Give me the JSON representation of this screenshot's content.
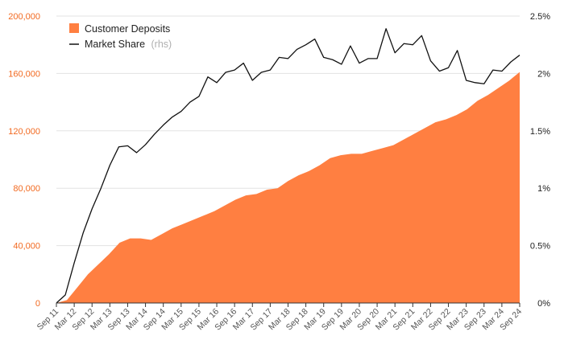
{
  "chart_data": {
    "type": "area+line",
    "title": "",
    "colors": {
      "deposits": "#ff7f41",
      "share": "#111111",
      "left_axis_text": "#f26a21",
      "grid": "#e3e3e3"
    },
    "legend": {
      "placement": "top-left",
      "deposits_label": "Customer Deposits",
      "share_label": "Market Share",
      "share_suffix": "(rhs)"
    },
    "left_axis": {
      "min": 0,
      "max": 200000,
      "ticks": [
        0,
        40000,
        80000,
        120000,
        160000,
        200000
      ],
      "tick_labels": [
        "0",
        "40,000",
        "80,000",
        "120,000",
        "160,000",
        "200,000"
      ]
    },
    "right_axis": {
      "min": 0,
      "max": 2.5,
      "ticks": [
        0,
        0.5,
        1,
        1.5,
        2,
        2.5
      ],
      "tick_labels": [
        "0%",
        "0.5%",
        "1%",
        "1.5%",
        "2%",
        "2.5%"
      ]
    },
    "x_tick_labels": [
      "Sep 11",
      "Mar 12",
      "Sep 12",
      "Mar 13",
      "Sep 13",
      "Mar 14",
      "Sep 14",
      "Mar 15",
      "Sep 15",
      "Mar 16",
      "Sep 16",
      "Mar 17",
      "Sep 17",
      "Mar 18",
      "Sep 18",
      "Mar 19",
      "Sep 19",
      "Mar 20",
      "Sep 20",
      "Mar 21",
      "Sep 21",
      "Mar 22",
      "Sep 22",
      "Mar 23",
      "Sep 23",
      "Mar 24",
      "Sep 24"
    ],
    "series": [
      {
        "name": "Customer Deposits",
        "axis": "left",
        "kind": "area",
        "values": [
          0,
          2000,
          11000,
          20000,
          27000,
          34000,
          42000,
          45000,
          45000,
          44000,
          48000,
          52000,
          55000,
          58000,
          61000,
          64000,
          68000,
          72000,
          75000,
          76000,
          79000,
          80000,
          85000,
          89000,
          92000,
          96000,
          101000,
          103000,
          104000,
          104000,
          106000,
          108000,
          110000,
          114000,
          118000,
          122000,
          126000,
          128000,
          131000,
          135000,
          141000,
          145000,
          150000,
          155000,
          161000
        ]
      },
      {
        "name": "Market Share",
        "axis": "right",
        "kind": "line",
        "values": [
          0,
          0.07,
          0.35,
          0.61,
          0.82,
          1.0,
          1.2,
          1.36,
          1.37,
          1.31,
          1.38,
          1.47,
          1.55,
          1.62,
          1.67,
          1.75,
          1.8,
          1.97,
          1.92,
          2.01,
          2.03,
          2.09,
          1.94,
          2.01,
          2.03,
          2.14,
          2.13,
          2.21,
          2.25,
          2.3,
          2.14,
          2.12,
          2.08,
          2.24,
          2.09,
          2.13,
          2.13,
          2.39,
          2.18,
          2.26,
          2.25,
          2.33,
          2.11,
          2.02,
          2.05,
          2.2,
          1.94,
          1.92,
          1.91,
          2.03,
          2.02,
          2.1,
          2.16
        ]
      }
    ]
  }
}
